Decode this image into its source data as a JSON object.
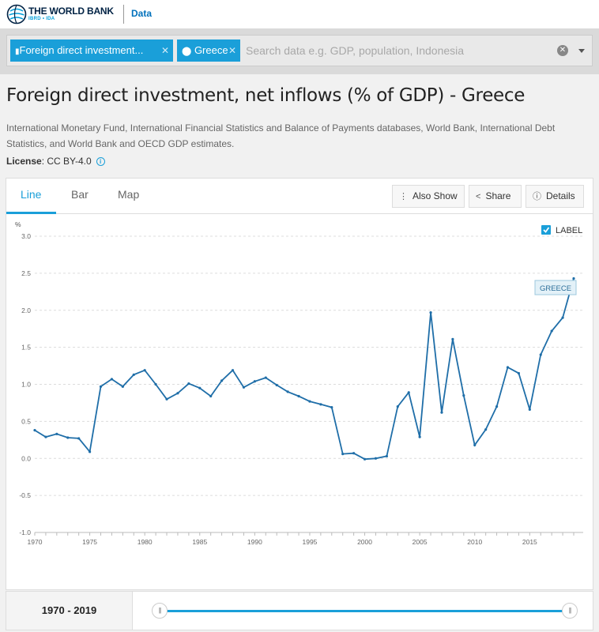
{
  "header": {
    "logo_title": "THE WORLD BANK",
    "logo_sub": "IBRD • IDA",
    "data_link": "Data"
  },
  "search": {
    "chips": [
      {
        "label": "Foreign direct investment..."
      },
      {
        "label": "Greece"
      }
    ],
    "placeholder": "Search data e.g. GDP, population, Indonesia"
  },
  "page": {
    "title": "Foreign direct investment, net inflows (% of GDP) - Greece",
    "source": "International Monetary Fund, International Financial Statistics and Balance of Payments databases, World Bank, International Debt Statistics, and World Bank and OECD GDP estimates.",
    "license_label": "License",
    "license_value": ": CC BY-4.0"
  },
  "tabs": [
    {
      "label": "Line"
    },
    {
      "label": "Bar"
    },
    {
      "label": "Map"
    }
  ],
  "toolbar": {
    "also_show": "Also Show",
    "share": "Share",
    "details": "Details"
  },
  "label_toggle": "LABEL",
  "range_label": "1970 - 2019",
  "colors": {
    "accent": "#1a9fd9",
    "line": "#1f6ea8"
  },
  "chart_data": {
    "type": "line",
    "title": "Foreign direct investment, net inflows (% of GDP) - Greece",
    "ylabel": "%",
    "xlabel": "",
    "ylim": [
      -1.0,
      3.0
    ],
    "yticks": [
      -1.0,
      -0.5,
      0.0,
      0.5,
      1.0,
      1.5,
      2.0,
      2.5,
      3.0
    ],
    "ytick_labels": [
      "-1.0",
      "-0.5",
      "0.0",
      "0.5",
      "1.0",
      "1.5",
      "2.0",
      "2.5",
      "3.0"
    ],
    "xlim": [
      1970,
      2019
    ],
    "xticks": [
      1970,
      1975,
      1980,
      1985,
      1990,
      1995,
      2000,
      2005,
      2010,
      2015
    ],
    "grid": true,
    "series": [
      {
        "name": "GREECE",
        "x": [
          1970,
          1971,
          1972,
          1973,
          1974,
          1975,
          1976,
          1977,
          1978,
          1979,
          1980,
          1981,
          1982,
          1983,
          1984,
          1985,
          1986,
          1987,
          1988,
          1989,
          1990,
          1991,
          1992,
          1993,
          1994,
          1995,
          1996,
          1997,
          1998,
          1999,
          2000,
          2001,
          2002,
          2003,
          2004,
          2005,
          2006,
          2007,
          2008,
          2009,
          2010,
          2011,
          2012,
          2013,
          2014,
          2015,
          2016,
          2017,
          2018,
          2019
        ],
        "values": [
          0.38,
          0.29,
          0.33,
          0.28,
          0.27,
          0.09,
          0.97,
          1.07,
          0.97,
          1.13,
          1.19,
          1.0,
          0.8,
          0.88,
          1.01,
          0.95,
          0.84,
          1.05,
          1.19,
          0.96,
          1.04,
          1.09,
          0.99,
          0.9,
          0.84,
          0.77,
          0.73,
          0.69,
          0.06,
          0.07,
          -0.01,
          0.0,
          0.03,
          0.7,
          0.89,
          0.29,
          1.97,
          0.62,
          1.61,
          0.85,
          0.18,
          0.39,
          0.7,
          1.23,
          1.15,
          0.66,
          1.4,
          1.72,
          1.9,
          2.43
        ]
      }
    ],
    "series_label": "GREECE"
  }
}
